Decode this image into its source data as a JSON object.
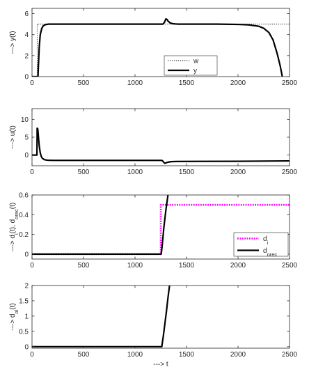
{
  "chart_data": [
    {
      "type": "line",
      "ylabel": "---> y(t)",
      "xlabel": "",
      "xlim": [
        0,
        2500
      ],
      "ylim": [
        0,
        6.5
      ],
      "xticks": [
        0,
        500,
        1000,
        1500,
        2000,
        2500
      ],
      "yticks": [
        0,
        2,
        4,
        6
      ],
      "grid": false,
      "legend": "lower-right-inside",
      "series": [
        {
          "name": "w",
          "style": "dotted",
          "color": "#000000",
          "x": [
            0,
            50,
            50,
            2500
          ],
          "y": [
            0,
            0,
            5,
            5
          ]
        },
        {
          "name": "y",
          "style": "solid",
          "color": "#000000",
          "x": [
            0,
            58,
            62,
            70,
            80,
            95,
            110,
            130,
            160,
            200,
            1270,
            1285,
            1300,
            1310,
            1320,
            1340,
            1370,
            1420,
            1500,
            1800,
            2000,
            2100,
            2200,
            2250,
            2300,
            2340,
            2380,
            2410,
            2430
          ],
          "y": [
            0,
            0,
            1.0,
            2.8,
            4.0,
            4.6,
            4.85,
            4.95,
            5.0,
            5.0,
            5.0,
            5.15,
            5.5,
            5.45,
            5.3,
            5.12,
            5.03,
            5.0,
            5.0,
            5.0,
            4.97,
            4.93,
            4.8,
            4.6,
            4.2,
            3.5,
            2.2,
            1.0,
            0
          ]
        }
      ]
    },
    {
      "type": "line",
      "ylabel": "---> u(t)",
      "xlabel": "",
      "xlim": [
        0,
        2500
      ],
      "ylim": [
        -3,
        13
      ],
      "xticks": [
        0,
        500,
        1000,
        1500,
        2000,
        2500
      ],
      "yticks": [
        0,
        5,
        10
      ],
      "grid": false,
      "legend": "none",
      "series": [
        {
          "name": "",
          "style": "solid",
          "color": "#000000",
          "x": [
            0,
            48,
            50,
            52,
            56,
            60,
            65,
            70,
            80,
            90,
            100,
            120,
            150,
            200,
            300,
            1260,
            1270,
            1280,
            1290,
            1300,
            1320,
            1350,
            1400,
            1600,
            2000,
            2500
          ],
          "y": [
            0,
            0,
            7.5,
            7.5,
            7.3,
            6.0,
            4.2,
            2.6,
            0.6,
            -0.4,
            -0.9,
            -1.3,
            -1.45,
            -1.5,
            -1.5,
            -1.5,
            -1.7,
            -2.1,
            -2.3,
            -2.2,
            -2.0,
            -1.85,
            -1.8,
            -1.78,
            -1.75,
            -1.65
          ]
        }
      ]
    },
    {
      "type": "line",
      "ylabel": "---> d_i(t), d_orec(t)",
      "xlabel": "",
      "xlim": [
        0,
        2500
      ],
      "ylim": [
        -0.05,
        0.6
      ],
      "xticks": [
        0,
        500,
        1000,
        1500,
        2000,
        2500
      ],
      "yticks": [
        0,
        0.2,
        0.4,
        0.6
      ],
      "ytick_labels": [
        "0",
        "0.2",
        "0.4",
        "0.6"
      ],
      "grid": false,
      "legend": "lower-right-inside",
      "legend_labels": [
        {
          "main": "d",
          "sub": "i"
        },
        {
          "main": "d",
          "sub": "orec"
        }
      ],
      "series": [
        {
          "name": "d_i",
          "style": "dotted",
          "color": "#ff00ff",
          "x": [
            0,
            1250,
            1250,
            2500
          ],
          "y": [
            0,
            0,
            0.5,
            0.5
          ]
        },
        {
          "name": "d_orec",
          "style": "solid",
          "color": "#000000",
          "x": [
            0,
            1255,
            1265,
            1280,
            1300,
            1320
          ],
          "y": [
            0,
            0,
            0.1,
            0.27,
            0.45,
            0.6
          ]
        }
      ]
    },
    {
      "type": "line",
      "ylabel": "---> d_ol(t)",
      "xlabel": "---> t",
      "xlim": [
        0,
        2500
      ],
      "ylim": [
        -0.05,
        2
      ],
      "xticks": [
        0,
        500,
        1000,
        1500,
        2000,
        2500
      ],
      "yticks": [
        0,
        0.5,
        1,
        1.5,
        2
      ],
      "ytick_labels": [
        "0",
        "0.5",
        "1",
        "1.5",
        "2"
      ],
      "grid": false,
      "legend": "none",
      "series": [
        {
          "name": "",
          "style": "solid",
          "color": "#000000",
          "x": [
            0,
            1260,
            1275,
            1290,
            1305,
            1320,
            1335
          ],
          "y": [
            0,
            0,
            0.35,
            0.75,
            1.15,
            1.6,
            2.0
          ]
        }
      ]
    }
  ]
}
